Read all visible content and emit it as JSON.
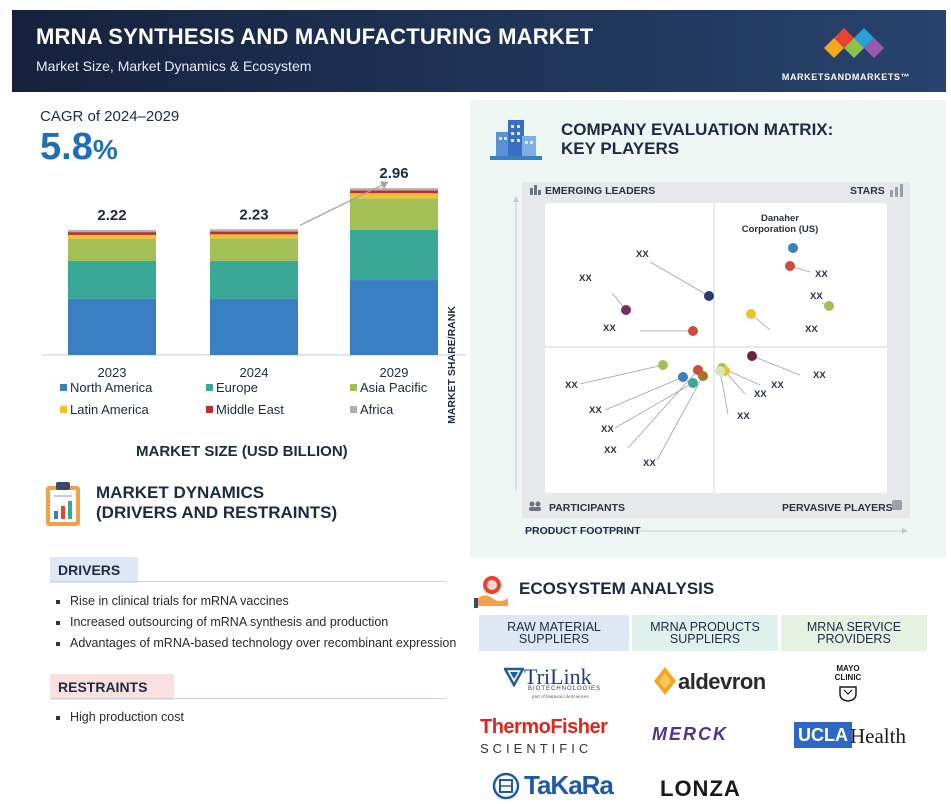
{
  "header": {
    "title": "MRNA SYNTHESIS AND MANUFACTURING MARKET",
    "subtitle": "Market Size, Market Dynamics & Ecosystem",
    "brand": "MARKETSANDMARKETS™"
  },
  "cagr": {
    "label": "CAGR of 2024–2029",
    "value": "5.8",
    "unit": "%"
  },
  "chart_data": {
    "type": "bar",
    "stacked": true,
    "title": "MARKET SIZE (USD BILLION)",
    "categories": [
      "2023",
      "2024",
      "2029"
    ],
    "totals": [
      2.22,
      2.23,
      2.96
    ],
    "total_labels": [
      "2.22",
      "2.23",
      "2.96"
    ],
    "series": [
      {
        "name": "North America",
        "color": "#3a7fc1",
        "values": [
          1.0,
          1.0,
          1.33
        ]
      },
      {
        "name": "Europe",
        "color": "#3aa896",
        "values": [
          0.67,
          0.67,
          0.89
        ]
      },
      {
        "name": "Asia Pacific",
        "color": "#a3bf55",
        "values": [
          0.39,
          0.4,
          0.56
        ]
      },
      {
        "name": "Latin America",
        "color": "#f2c12e",
        "values": [
          0.07,
          0.07,
          0.09
        ]
      },
      {
        "name": "Middle East",
        "color": "#b8312f",
        "values": [
          0.05,
          0.05,
          0.05
        ]
      },
      {
        "name": "Africa",
        "color": "#b0b0b0",
        "values": [
          0.04,
          0.04,
          0.04
        ]
      }
    ],
    "ylim": [
      0,
      3.3
    ],
    "grid": false,
    "legend": "bottom"
  },
  "dynamics": {
    "title_line1": "MARKET DYNAMICS",
    "title_line2": "(DRIVERS AND RESTRAINTS)",
    "drivers_label": "DRIVERS",
    "drivers": [
      "Rise in clinical trials for mRNA vaccines",
      "Increased outsourcing of mRNA synthesis and production",
      "Advantages of mRNA-based technology over recombinant expression"
    ],
    "restraints_label": "RESTRAINTS",
    "restraints": [
      "High production cost"
    ]
  },
  "matrix": {
    "title_line1": "COMPANY EVALUATION MATRIX:",
    "title_line2": "KEY PLAYERS",
    "quadrants": {
      "top_left": "EMERGING LEADERS",
      "top_right": "STARS",
      "bottom_left": "PARTICIPANTS",
      "bottom_right": "PERVASIVE PLAYERS"
    },
    "y_axis": "MARKET SHARE/RANK",
    "x_axis": "PRODUCT FOOTPRINT",
    "named_company": "Danaher Corporation (US)",
    "placeholder_label": "XX"
  },
  "ecosystem": {
    "title": "ECOSYSTEM ANALYSIS",
    "columns": [
      {
        "label": "RAW MATERIAL SUPPLIERS",
        "logos": [
          "TriLink",
          "ThermoFisher SCIENTIFIC",
          "TaKaRa"
        ]
      },
      {
        "label": "MRNA PRODUCTS SUPPLIERS",
        "logos": [
          "aldevron",
          "MERCK",
          "LONZA"
        ]
      },
      {
        "label": "MRNA SERVICE PROVIDERS",
        "logos": [
          "MAYO CLINIC",
          "UCLA Health"
        ]
      }
    ],
    "trilink_sub": "BIOTECHNOLOGIES",
    "trilink_tag": "part of Maravai LifeSciences"
  }
}
